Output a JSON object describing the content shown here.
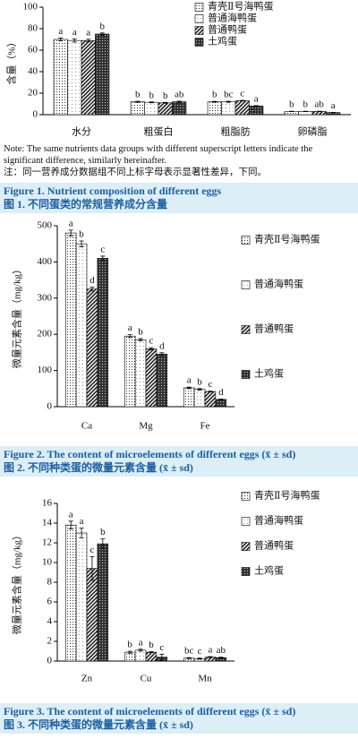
{
  "chart_data": [
    {
      "type": "bar",
      "ylabel": "含量（%）",
      "legend": "upper right",
      "categories": [
        "水分",
        "粗蛋白",
        "粗脂肪",
        "卵磷脂"
      ],
      "ylim": [
        0,
        100
      ],
      "yticks": [
        0,
        20,
        40,
        60,
        80,
        100
      ],
      "series": [
        {
          "name": "青壳Ⅱ号海鸭蛋",
          "pattern": "dots",
          "values": [
            70,
            12,
            12,
            3
          ],
          "errors": [
            1.2,
            0.5,
            0.4,
            0.2
          ],
          "letters": [
            "a",
            "b",
            "b",
            "b"
          ]
        },
        {
          "name": "普通海鸭蛋",
          "pattern": "light",
          "values": [
            69,
            11.5,
            12,
            3
          ],
          "errors": [
            1.5,
            0.4,
            0.5,
            0.2
          ],
          "letters": [
            "a",
            "b",
            "bc",
            "b"
          ]
        },
        {
          "name": "普通鸭蛋",
          "pattern": "hatch",
          "values": [
            69,
            11,
            13,
            3
          ],
          "errors": [
            1.2,
            0.4,
            0.3,
            0.2
          ],
          "letters": [
            "a",
            "b",
            "c",
            "ab"
          ]
        },
        {
          "name": "土鸡蛋",
          "pattern": "dark",
          "values": [
            75,
            12,
            8,
            2
          ],
          "errors": [
            1.0,
            0.6,
            0.4,
            0.2
          ],
          "letters": [
            "b",
            "ab",
            "a",
            "a"
          ]
        }
      ],
      "note_en": "Note: The same nutrients data groups with different superscript letters indicate the significant difference, similarly hereinafter.",
      "note_zh": "注：同一营养成分数据组不同上标字母表示显著性差异，下同。",
      "caption_en": "Figure 1. Nutrient composition of different eggs",
      "caption_zh": "图 1. 不同蛋类的常规营养成分含量"
    },
    {
      "type": "bar",
      "ylabel": "微量元素含量（mg/kg）",
      "legend": "right",
      "categories": [
        "Ca",
        "Mg",
        "Fe"
      ],
      "ylim": [
        0,
        500
      ],
      "yticks": [
        0,
        100,
        200,
        300,
        400,
        500
      ],
      "series": [
        {
          "name": "青壳Ⅱ号海鸭蛋",
          "pattern": "dots",
          "values": [
            480,
            195,
            52
          ],
          "errors": [
            8,
            4,
            2
          ],
          "letters": [
            "a",
            "a",
            "a"
          ]
        },
        {
          "name": "普通海鸭蛋",
          "pattern": "light",
          "values": [
            450,
            185,
            48
          ],
          "errors": [
            8,
            3,
            2
          ],
          "letters": [
            "b",
            "b",
            "b"
          ]
        },
        {
          "name": "普通鸭蛋",
          "pattern": "hatch",
          "values": [
            325,
            160,
            42
          ],
          "errors": [
            5,
            3,
            1
          ],
          "letters": [
            "d",
            "c",
            "c"
          ]
        },
        {
          "name": "土鸡蛋",
          "pattern": "dark",
          "values": [
            410,
            145,
            20
          ],
          "errors": [
            6,
            4,
            1
          ],
          "letters": [
            "c",
            "d",
            "d"
          ]
        }
      ],
      "caption_en": "Figure 2. The content of microelements of different eggs (x̄ ± sd)",
      "caption_zh": "图 2. 不同种类蛋的微量元素含量 (x̄ ± sd)"
    },
    {
      "type": "bar",
      "ylabel": "微量元素含量（mg/kg）",
      "legend": "right",
      "categories": [
        "Zn",
        "Cu",
        "Mn"
      ],
      "ylim": [
        0,
        16
      ],
      "yticks": [
        0,
        2,
        4,
        6,
        8,
        10,
        12,
        14,
        16
      ],
      "series": [
        {
          "name": "青壳Ⅱ号海鸭蛋",
          "pattern": "dots",
          "values": [
            13.8,
            0.9,
            0.3
          ],
          "errors": [
            0.4,
            0.1,
            0.05
          ],
          "letters": [
            "a",
            "b",
            "bc"
          ]
        },
        {
          "name": "普通海鸭蛋",
          "pattern": "light",
          "values": [
            13.0,
            1.1,
            0.25
          ],
          "errors": [
            0.5,
            0.1,
            0.05
          ],
          "letters": [
            "a",
            "a",
            "c"
          ]
        },
        {
          "name": "普通鸭蛋",
          "pattern": "hatch",
          "values": [
            9.4,
            0.9,
            0.4
          ],
          "errors": [
            1.2,
            0.05,
            0.05
          ],
          "letters": [
            "c",
            "b",
            "a"
          ]
        },
        {
          "name": "土鸡蛋",
          "pattern": "dark",
          "values": [
            11.9,
            0.4,
            0.35
          ],
          "errors": [
            0.5,
            0.3,
            0.05
          ],
          "letters": [
            "b",
            "c",
            "ab"
          ]
        }
      ],
      "caption_en": "Figure 3. The content of microelements of different eggs (x̄ ± sd)",
      "caption_zh": "图 3. 不同种类蛋的微量元素含量 (x̄ ± sd)"
    }
  ]
}
